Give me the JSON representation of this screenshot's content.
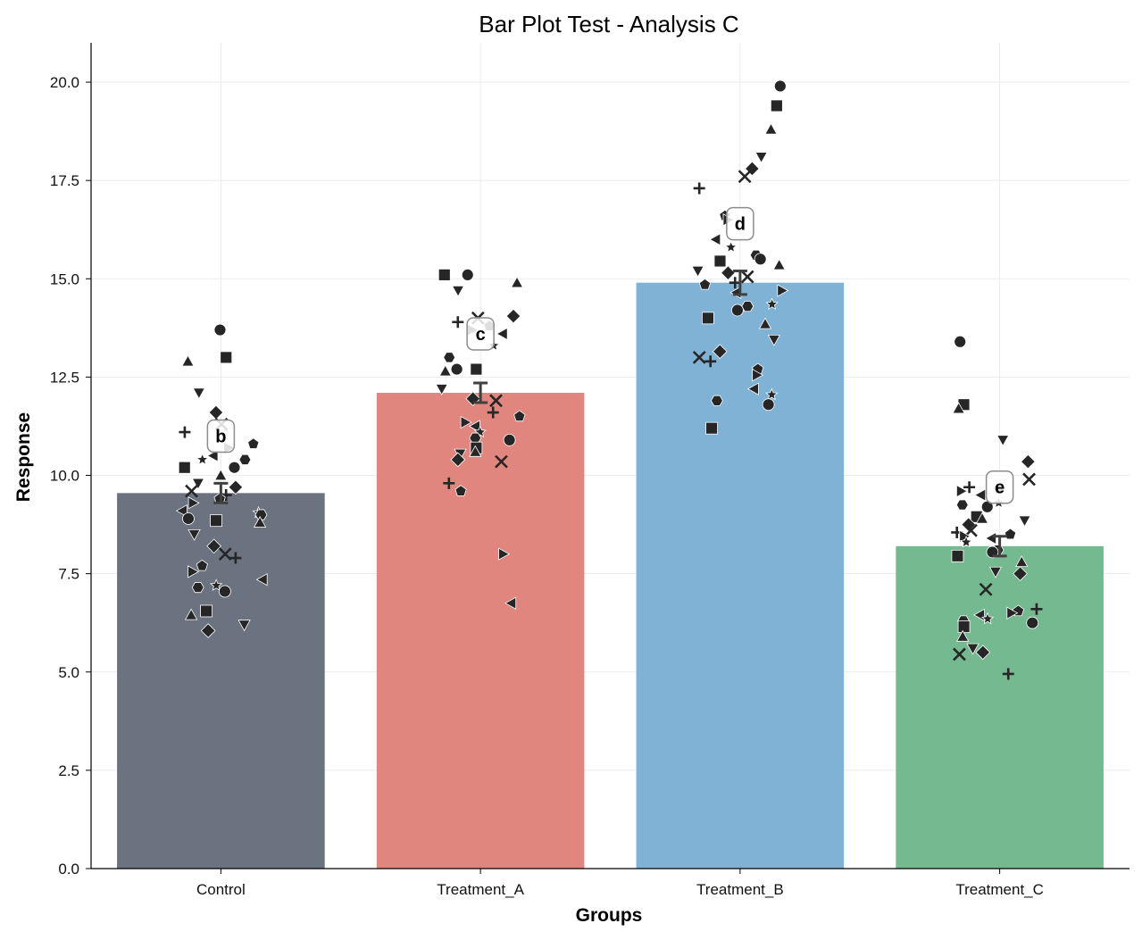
{
  "chart_data": {
    "type": "bar",
    "title": "Bar Plot Test - Analysis C",
    "xlabel": "Groups",
    "ylabel": "Response",
    "ylim": [
      0,
      21
    ],
    "yticks": [
      "0.0",
      "2.5",
      "5.0",
      "7.5",
      "10.0",
      "12.5",
      "15.0",
      "17.5",
      "20.0"
    ],
    "grid": true,
    "categories": [
      "Control",
      "Treatment_A",
      "Treatment_B",
      "Treatment_C"
    ],
    "values": [
      9.55,
      12.1,
      14.9,
      8.2
    ],
    "errors": [
      0.25,
      0.25,
      0.3,
      0.25
    ],
    "colors": [
      "#6b7280",
      "#e0867f",
      "#7fb2d5",
      "#74b98f"
    ],
    "significance_letters": [
      "b",
      "c",
      "d",
      "e"
    ],
    "letter_y": [
      11.0,
      13.6,
      16.4,
      9.7
    ],
    "points": [
      [
        13.7,
        13.0,
        12.9,
        12.1,
        11.6,
        11.3,
        11.1,
        10.8,
        10.7,
        10.5,
        10.4,
        10.4,
        10.2,
        10.2,
        10.0,
        9.8,
        9.7,
        9.6,
        9.5,
        9.4,
        9.3,
        9.1,
        9.05,
        9.0,
        8.9,
        8.85,
        8.8,
        8.5,
        8.2,
        8.0,
        7.9,
        7.7,
        7.55,
        7.35,
        7.2,
        7.15,
        7.05,
        6.55,
        6.45,
        6.2,
        6.05
      ],
      [
        15.1,
        15.1,
        14.9,
        14.7,
        14.05,
        14.0,
        13.9,
        13.8,
        13.7,
        13.6,
        13.3,
        13.0,
        12.7,
        12.7,
        12.65,
        12.2,
        11.95,
        11.9,
        11.6,
        11.5,
        11.35,
        11.25,
        11.1,
        10.95,
        10.9,
        10.7,
        10.6,
        10.55,
        10.4,
        10.35,
        9.8,
        9.6,
        8.0,
        6.75
      ],
      [
        19.9,
        19.4,
        18.8,
        18.1,
        17.8,
        17.6,
        17.3,
        16.6,
        16.5,
        16.0,
        15.8,
        15.6,
        15.5,
        15.45,
        15.35,
        15.2,
        15.15,
        15.05,
        14.9,
        14.85,
        14.7,
        14.65,
        14.35,
        14.3,
        14.2,
        14.0,
        13.85,
        13.45,
        13.15,
        13.0,
        12.9,
        12.7,
        12.55,
        12.2,
        12.05,
        11.9,
        11.8,
        11.2
      ],
      [
        13.4,
        11.8,
        11.7,
        10.9,
        10.35,
        9.9,
        9.7,
        9.65,
        9.6,
        9.5,
        9.3,
        9.25,
        9.2,
        8.95,
        8.9,
        8.85,
        8.75,
        8.6,
        8.55,
        8.5,
        8.45,
        8.4,
        8.3,
        8.1,
        8.05,
        7.95,
        7.8,
        7.55,
        7.5,
        7.1,
        6.6,
        6.55,
        6.5,
        6.45,
        6.35,
        6.3,
        6.25,
        6.15,
        5.9,
        5.6,
        5.5,
        5.45,
        4.95
      ]
    ]
  }
}
